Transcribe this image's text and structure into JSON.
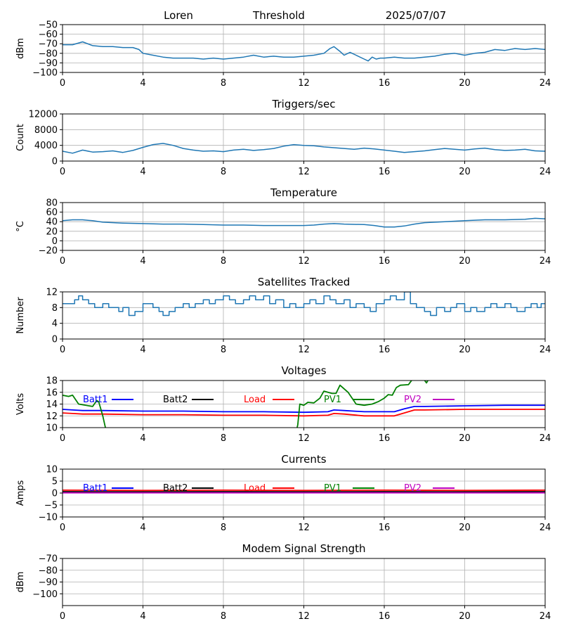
{
  "header": {
    "site": "Loren",
    "mode": "Threshold",
    "date": "2025/07/07"
  },
  "colors": {
    "series_default": "#1f77b4",
    "grid": "#b0b0b0",
    "batt1": "#0000ff",
    "batt2": "#000000",
    "load": "#ff0000",
    "pv1": "#008000",
    "pv2": "#bf00bf"
  },
  "chart_data": [
    {
      "type": "line",
      "title": "",
      "ylabel": "dBm",
      "xlim": [
        0,
        24
      ],
      "ylim": [
        -100,
        -50
      ],
      "xticks": [
        0,
        4,
        8,
        12,
        16,
        20,
        24
      ],
      "yticks": [
        -100,
        -90,
        -80,
        -70,
        -60,
        -50
      ],
      "grid": true,
      "series": [
        {
          "color": "#1f77b4",
          "x": [
            0,
            0.5,
            1.0,
            1.5,
            2.0,
            2.5,
            3.0,
            3.5,
            3.8,
            4.0,
            4.5,
            5.0,
            5.5,
            6.0,
            6.5,
            7.0,
            7.5,
            8.0,
            8.5,
            9.0,
            9.5,
            10.0,
            10.5,
            11.0,
            11.5,
            12.0,
            12.5,
            13.0,
            13.3,
            13.5,
            13.8,
            14.0,
            14.3,
            14.6,
            15.0,
            15.2,
            15.4,
            15.6,
            15.8,
            16.0,
            16.5,
            17.0,
            17.5,
            18.0,
            18.5,
            19.0,
            19.5,
            20.0,
            20.5,
            21.0,
            21.5,
            22.0,
            22.5,
            23.0,
            23.5,
            24.0
          ],
          "y": [
            -71,
            -71,
            -68,
            -72,
            -73,
            -73,
            -74,
            -74,
            -76,
            -80,
            -82,
            -84,
            -85,
            -85,
            -85,
            -86,
            -85,
            -86,
            -85,
            -84,
            -82,
            -84,
            -83,
            -84,
            -84,
            -83,
            -82,
            -80,
            -75,
            -73,
            -78,
            -82,
            -79,
            -82,
            -86,
            -88,
            -84,
            -86,
            -85,
            -85,
            -84,
            -85,
            -85,
            -84,
            -83,
            -81,
            -80,
            -82,
            -80,
            -79,
            -76,
            -77,
            -75,
            -76,
            -75,
            -76
          ]
        }
      ]
    },
    {
      "type": "line",
      "title": "Triggers/sec",
      "ylabel": "Count",
      "xlim": [
        0,
        24
      ],
      "ylim": [
        0,
        12000
      ],
      "xticks": [
        0,
        4,
        8,
        12,
        16,
        20,
        24
      ],
      "yticks": [
        0,
        4000,
        8000,
        12000
      ],
      "grid": true,
      "series": [
        {
          "color": "#1f77b4",
          "x": [
            0,
            0.5,
            1.0,
            1.5,
            2.0,
            2.5,
            3.0,
            3.5,
            4.0,
            4.5,
            5.0,
            5.5,
            6.0,
            6.5,
            7.0,
            7.5,
            8.0,
            8.5,
            9.0,
            9.5,
            10.0,
            10.5,
            11.0,
            11.5,
            12.0,
            12.5,
            13.0,
            13.5,
            14.0,
            14.5,
            15.0,
            15.5,
            16.0,
            16.5,
            17.0,
            17.5,
            18.0,
            18.5,
            19.0,
            19.5,
            20.0,
            20.5,
            21.0,
            21.5,
            22.0,
            22.5,
            23.0,
            23.5,
            24.0
          ],
          "y": [
            2500,
            2000,
            2800,
            2300,
            2400,
            2600,
            2200,
            2700,
            3500,
            4200,
            4500,
            4000,
            3200,
            2800,
            2500,
            2600,
            2400,
            2800,
            3000,
            2700,
            2900,
            3200,
            3800,
            4200,
            4000,
            3900,
            3600,
            3400,
            3200,
            3000,
            3300,
            3100,
            2800,
            2500,
            2200,
            2400,
            2600,
            2900,
            3200,
            3000,
            2800,
            3100,
            3300,
            2900,
            2700,
            2800,
            3000,
            2600,
            2500
          ]
        }
      ]
    },
    {
      "type": "line",
      "title": "Temperature",
      "ylabel": "°C",
      "xlim": [
        0,
        24
      ],
      "ylim": [
        -20,
        80
      ],
      "xticks": [
        0,
        4,
        8,
        12,
        16,
        20,
        24
      ],
      "yticks": [
        -20,
        0,
        20,
        40,
        60,
        80
      ],
      "grid": true,
      "series": [
        {
          "color": "#1f77b4",
          "x": [
            0,
            0.5,
            1.0,
            1.5,
            2.0,
            3.0,
            4.0,
            5.0,
            6.0,
            7.0,
            8.0,
            9.0,
            10.0,
            11.0,
            12.0,
            12.5,
            13.0,
            13.5,
            14.0,
            15.0,
            15.5,
            16.0,
            16.5,
            17.0,
            17.5,
            18.0,
            19.0,
            20.0,
            21.0,
            22.0,
            23.0,
            23.5,
            24.0
          ],
          "y": [
            42,
            44,
            44,
            42,
            39,
            37,
            36,
            35,
            35,
            34,
            33,
            33,
            32,
            32,
            32,
            33,
            35,
            36,
            35,
            34,
            32,
            29,
            29,
            31,
            35,
            38,
            40,
            42,
            44,
            44,
            45,
            47,
            46
          ]
        }
      ]
    },
    {
      "type": "line",
      "title": "Satellites Tracked",
      "ylabel": "Number",
      "xlim": [
        0,
        24
      ],
      "ylim": [
        0,
        12
      ],
      "xticks": [
        0,
        4,
        8,
        12,
        16,
        20,
        24
      ],
      "yticks": [
        0,
        4,
        8,
        12
      ],
      "grid": true,
      "step": true,
      "series": [
        {
          "color": "#1f77b4",
          "x": [
            0,
            0.6,
            0.8,
            1.0,
            1.3,
            1.6,
            2.0,
            2.3,
            2.8,
            3.0,
            3.3,
            3.6,
            4.0,
            4.5,
            4.8,
            5.0,
            5.3,
            5.6,
            6.0,
            6.3,
            6.6,
            7.0,
            7.3,
            7.6,
            8.0,
            8.3,
            8.6,
            9.0,
            9.3,
            9.6,
            10.0,
            10.3,
            10.6,
            11.0,
            11.3,
            11.6,
            12.0,
            12.3,
            12.6,
            13.0,
            13.3,
            13.6,
            14.0,
            14.3,
            14.6,
            15.0,
            15.3,
            15.6,
            16.0,
            16.3,
            16.6,
            17.0,
            17.3,
            17.6,
            18.0,
            18.3,
            18.6,
            19.0,
            19.3,
            19.6,
            20.0,
            20.3,
            20.6,
            21.0,
            21.3,
            21.6,
            22.0,
            22.3,
            22.6,
            23.0,
            23.3,
            23.6,
            23.8,
            24.0
          ],
          "y": [
            9,
            10,
            11,
            10,
            9,
            8,
            9,
            8,
            7,
            8,
            6,
            7,
            9,
            8,
            7,
            6,
            7,
            8,
            9,
            8,
            9,
            10,
            9,
            10,
            11,
            10,
            9,
            10,
            11,
            10,
            11,
            9,
            10,
            8,
            9,
            8,
            9,
            10,
            9,
            11,
            10,
            9,
            10,
            8,
            9,
            8,
            7,
            9,
            10,
            11,
            10,
            12,
            9,
            8,
            7,
            6,
            8,
            7,
            8,
            9,
            7,
            8,
            7,
            8,
            9,
            8,
            9,
            8,
            7,
            8,
            9,
            8,
            9,
            9
          ]
        }
      ]
    },
    {
      "type": "line",
      "title": "Voltages",
      "ylabel": "Volts",
      "xlim": [
        0,
        24
      ],
      "ylim": [
        10,
        18
      ],
      "xticks": [
        0,
        4,
        8,
        12,
        16,
        20,
        24
      ],
      "yticks": [
        10,
        12,
        14,
        16,
        18
      ],
      "grid": true,
      "legend": [
        "Batt1",
        "Batt2",
        "Load",
        "PV1",
        "PV2"
      ],
      "series": [
        {
          "name": "Batt1",
          "color": "#0000ff",
          "x": [
            0,
            0.5,
            1,
            2,
            4,
            6,
            8,
            10,
            12,
            13.2,
            13.5,
            14,
            15,
            16,
            16.5,
            17.0,
            17.5,
            18,
            20,
            22,
            24
          ],
          "y": [
            13.1,
            13.0,
            12.9,
            12.9,
            12.8,
            12.8,
            12.7,
            12.7,
            12.6,
            12.7,
            13.0,
            12.9,
            12.7,
            12.7,
            12.7,
            13.2,
            13.6,
            13.6,
            13.7,
            13.8,
            13.8
          ]
        },
        {
          "name": "Load",
          "color": "#ff0000",
          "x": [
            0,
            0.5,
            1,
            2,
            4,
            6,
            8,
            10,
            12,
            13.2,
            13.5,
            14,
            15,
            16,
            16.5,
            17.0,
            17.5,
            18,
            20,
            22,
            24
          ],
          "y": [
            12.5,
            12.4,
            12.3,
            12.3,
            12.2,
            12.2,
            12.1,
            12.1,
            12.0,
            12.1,
            12.4,
            12.3,
            12.0,
            12.0,
            12.0,
            12.5,
            13.0,
            13.0,
            13.1,
            13.1,
            13.1
          ]
        },
        {
          "name": "PV1",
          "color": "#008000",
          "x": [
            0,
            0.3,
            0.5,
            0.8,
            1.5,
            1.7,
            1.8,
            2.0,
            2.1,
            2.2,
            11.6,
            11.7,
            11.8,
            12.0,
            12.2,
            12.5,
            12.8,
            13.0,
            13.4,
            13.6,
            13.8,
            14.2,
            14.6,
            15.0,
            15.4,
            15.7,
            16.0,
            16.2,
            16.4,
            16.6,
            16.8,
            17.2,
            17.4,
            17.6,
            17.9,
            18.1,
            18.2
          ],
          "y": [
            15.5,
            15.3,
            15.5,
            14.0,
            13.6,
            14.6,
            14.4,
            12.0,
            10.5,
            9.0,
            9.0,
            10.5,
            14.0,
            13.8,
            14.3,
            14.2,
            15.0,
            16.2,
            15.8,
            15.8,
            17.2,
            16.0,
            14.0,
            13.8,
            14.0,
            14.4,
            15.0,
            15.6,
            15.5,
            16.8,
            17.2,
            17.3,
            18.2,
            19.0,
            18.5,
            17.6,
            18.2
          ]
        }
      ]
    },
    {
      "type": "line",
      "title": "Currents",
      "ylabel": "Amps",
      "xlim": [
        0,
        24
      ],
      "ylim": [
        -10,
        10
      ],
      "xticks": [
        0,
        4,
        8,
        12,
        16,
        20,
        24
      ],
      "yticks": [
        -10,
        -5,
        0,
        5,
        10
      ],
      "grid": true,
      "legend": [
        "Batt1",
        "Batt2",
        "Load",
        "PV1",
        "PV2"
      ],
      "series": [
        {
          "name": "Load",
          "color": "#ff0000",
          "x": [
            0,
            4,
            8,
            12,
            16,
            20,
            24
          ],
          "y": [
            1.2,
            1.1,
            1.2,
            1.1,
            1.2,
            1.1,
            1.2
          ]
        },
        {
          "name": "Batt2",
          "color": "#000000",
          "x": [
            0,
            4,
            8,
            12,
            16,
            20,
            24
          ],
          "y": [
            0.6,
            0.5,
            0.6,
            0.5,
            0.6,
            0.5,
            0.6
          ]
        },
        {
          "name": "PV2",
          "color": "#bf00bf",
          "x": [
            0,
            4,
            8,
            12,
            16,
            20,
            24
          ],
          "y": [
            0.1,
            0.1,
            0.1,
            0.1,
            0.1,
            0.1,
            0.1
          ]
        }
      ]
    },
    {
      "type": "line",
      "title": "Modem Signal Strength",
      "ylabel": "dBm",
      "xlim": [
        0,
        24
      ],
      "ylim": [
        -110,
        -70
      ],
      "xticks": [
        0,
        4,
        8,
        12,
        16,
        20,
        24
      ],
      "yticks": [
        -100,
        -90,
        -80,
        -70
      ],
      "grid": true,
      "series": []
    }
  ]
}
